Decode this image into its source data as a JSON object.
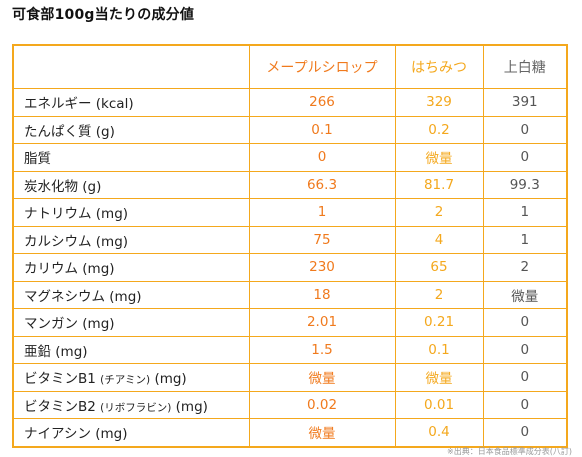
{
  "title": "可食部100g当たりの成分値",
  "columns": {
    "maple": "メープルシロップ",
    "honey": "はちみつ",
    "sugar": "上白糖"
  },
  "rows": [
    {
      "name": "エネルギー (kcal)",
      "maple": "266",
      "honey": "329",
      "sugar": "391"
    },
    {
      "name": "たんぱく質 (g)",
      "maple": "0.1",
      "honey": "0.2",
      "sugar": "0"
    },
    {
      "name": "脂質",
      "maple": "0",
      "honey": "微量",
      "sugar": "0"
    },
    {
      "name": "炭水化物 (g)",
      "maple": "66.3",
      "honey": "81.7",
      "sugar": "99.3"
    },
    {
      "name": "ナトリウム (mg)",
      "maple": "1",
      "honey": "2",
      "sugar": "1"
    },
    {
      "name": "カルシウム (mg)",
      "maple": "75",
      "honey": "4",
      "sugar": "1"
    },
    {
      "name": "カリウム (mg)",
      "maple": "230",
      "honey": "65",
      "sugar": "2"
    },
    {
      "name": "マグネシウム (mg)",
      "maple": "18",
      "honey": "2",
      "sugar": "微量"
    },
    {
      "name": "マンガン (mg)",
      "maple": "2.01",
      "honey": "0.21",
      "sugar": "0"
    },
    {
      "name": "亜鉛 (mg)",
      "maple": "1.5",
      "honey": "0.1",
      "sugar": "0"
    },
    {
      "name": "ビタミンB1",
      "note": "(チアミン)",
      "unit": "(mg)",
      "maple": "微量",
      "honey": "微量",
      "sugar": "0"
    },
    {
      "name": "ビタミンB2",
      "note": "(リボフラビン)",
      "unit": "(mg)",
      "maple": "0.02",
      "honey": "0.01",
      "sugar": "0"
    },
    {
      "name": "ナイアシン (mg)",
      "maple": "微量",
      "honey": "0.4",
      "sugar": "0"
    }
  ],
  "source": "※出典：日本食品標準成分表(八訂)"
}
